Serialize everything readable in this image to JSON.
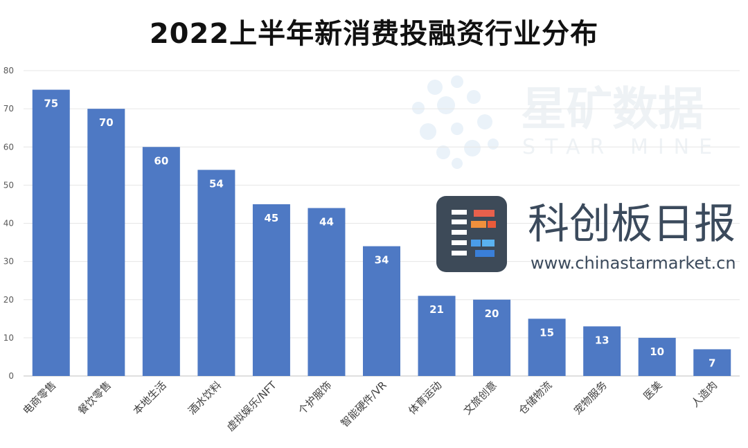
{
  "chart_data": {
    "type": "bar",
    "title": "2022上半年新消费投融资行业分布",
    "categories": [
      "电商零售",
      "餐饮零售",
      "本地生活",
      "酒水饮料",
      "虚拟娱乐/NFT",
      "个护服饰",
      "智能硬件/VR",
      "体育运动",
      "文旅创意",
      "仓储物流",
      "宠物服务",
      "医美",
      "人造肉"
    ],
    "values": [
      75,
      70,
      60,
      54,
      45,
      44,
      34,
      21,
      20,
      15,
      13,
      10,
      7
    ],
    "ylim": [
      0,
      80
    ],
    "yticks": [
      0,
      10,
      20,
      30,
      40,
      50,
      60,
      70,
      80
    ],
    "grid": true,
    "bar_color": "#4e79c4"
  },
  "watermark": {
    "brand_cn": "星矿数据",
    "brand_en": "STAR MINE"
  },
  "logo": {
    "name_cn": "科创板日报",
    "url": "www.chinastarmarket.cn"
  }
}
